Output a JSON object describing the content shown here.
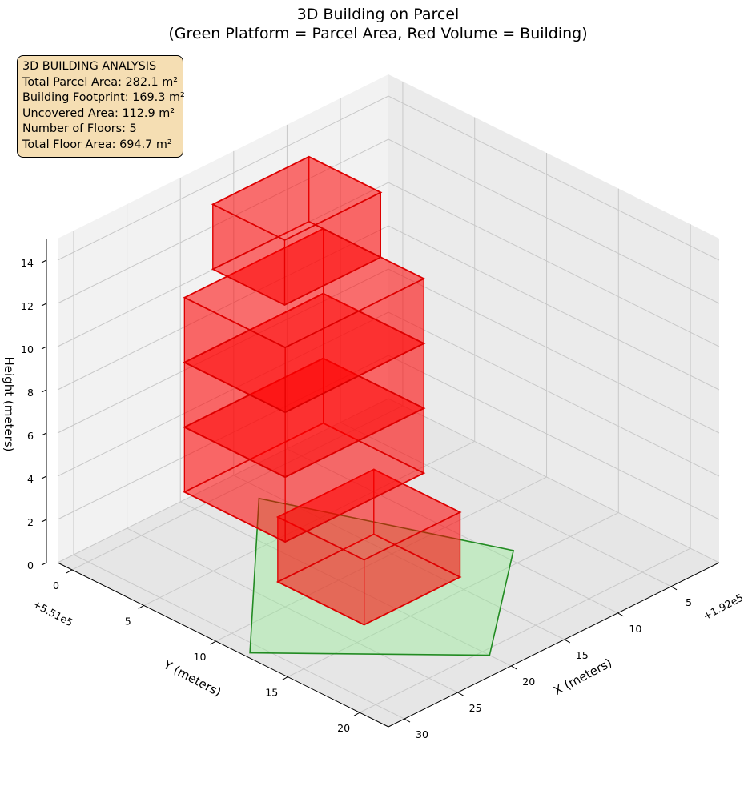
{
  "title": {
    "line1": "3D Building on Parcel",
    "line2": "(Green Platform = Parcel Area, Red Volume = Building)"
  },
  "info_box": {
    "heading": "3D BUILDING ANALYSIS",
    "lines": [
      "Total Parcel Area: 282.1 m²",
      "Building Footprint: 169.3 m²",
      "Uncovered Area: 112.9 m²",
      "Number of Floors: 5",
      "Total Floor Area: 694.7 m²"
    ]
  },
  "chart_data": {
    "type": "3d-polygons",
    "title": "3D Building on Parcel\n(Green Platform = Parcel Area, Red Volume = Building)",
    "xlabel": "X (meters)",
    "ylabel": "Y (meters)",
    "zlabel": "Height (meters)",
    "x_offset_label": "+1.92e5",
    "y_offset_label": "+5.51e5",
    "x_ticks": [
      5,
      10,
      15,
      20,
      25,
      30
    ],
    "y_ticks": [
      0,
      5,
      10,
      15,
      20
    ],
    "z_ticks": [
      0,
      2,
      4,
      6,
      8,
      10,
      12,
      14
    ],
    "xlim": [
      0.5,
      31.5
    ],
    "ylim": [
      -1,
      22
    ],
    "zlim": [
      0,
      15
    ],
    "grid": true,
    "colors": {
      "parcel_fill": "#90ee90",
      "parcel_edge": "#228b22",
      "building_fill": "#ff0000",
      "building_edge": "#dd0000",
      "pane_fill": "#f2f2f2",
      "info_bg": "#f5deb3"
    },
    "parcel": {
      "name": "Parcel",
      "polygon_xy": [
        [
          16,
          1.5
        ],
        [
          9,
          14
        ],
        [
          20,
          20.5
        ],
        [
          31,
          12
        ]
      ],
      "z": 0
    },
    "floors": [
      {
        "floor": 1,
        "z": [
          0,
          3
        ],
        "footprint": [
          [
            14,
            8
          ],
          [
            23,
            8
          ],
          [
            23,
            14
          ],
          [
            14,
            14
          ]
        ]
      },
      {
        "floor": 2,
        "z": [
          3,
          6
        ],
        "footprint": [
          [
            12,
            3
          ],
          [
            25,
            3
          ],
          [
            25,
            10
          ],
          [
            12,
            10
          ]
        ]
      },
      {
        "floor": 3,
        "z": [
          6,
          9
        ],
        "footprint": [
          [
            12,
            3
          ],
          [
            25,
            3
          ],
          [
            25,
            10
          ],
          [
            12,
            10
          ]
        ]
      },
      {
        "floor": 4,
        "z": [
          9,
          12
        ],
        "footprint": [
          [
            12,
            3
          ],
          [
            25,
            3
          ],
          [
            25,
            10
          ],
          [
            12,
            10
          ]
        ]
      },
      {
        "floor": 5,
        "z": [
          12,
          15
        ],
        "footprint": [
          [
            12,
            2
          ],
          [
            21,
            2
          ],
          [
            21,
            7
          ],
          [
            12,
            7
          ]
        ]
      }
    ]
  }
}
